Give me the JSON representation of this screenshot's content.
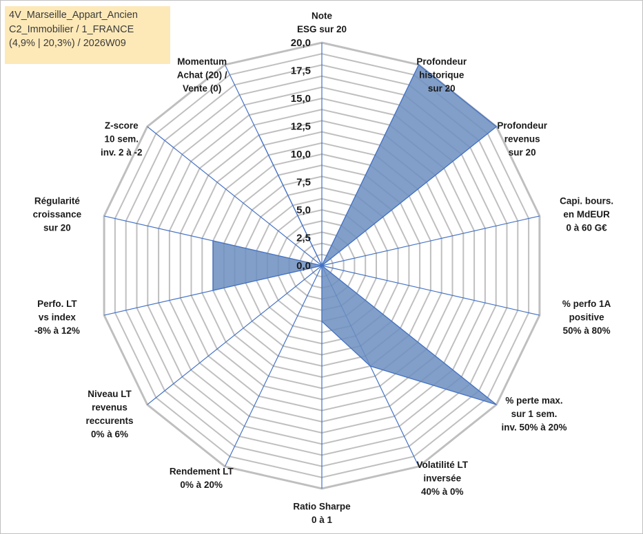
{
  "header": {
    "lines": [
      "4V_Marseille_Appart_Ancien",
      "C2_Immobilier / 1_FRANCE",
      "(4,9% | 20,3%) / 2026W09"
    ]
  },
  "chart_data": {
    "type": "radar",
    "title": "",
    "rmin": 0,
    "rmax": 20,
    "ticks": [
      "0,0",
      "2,5",
      "5,0",
      "7,5",
      "10,0",
      "12,5",
      "15,0",
      "17,5",
      "20,0"
    ],
    "tick_values": [
      0,
      2.5,
      5,
      7.5,
      10,
      12.5,
      15,
      17.5,
      20
    ],
    "grid": true,
    "legend": "none",
    "fill_color": "#6c8ebf",
    "line_color": "#4472c4",
    "grid_color": "#bfbfbf",
    "axes": [
      {
        "label": [
          "Note",
          "ESG sur 20"
        ],
        "value": 0
      },
      {
        "label": [
          "Profondeur",
          "historique",
          "sur 20"
        ],
        "value": 20
      },
      {
        "label": [
          "Profondeur",
          "revenus",
          "sur 20"
        ],
        "value": 20
      },
      {
        "label": [
          "Capi. bours.",
          "en MdEUR",
          "0 à 60 G€"
        ],
        "value": 0
      },
      {
        "label": [
          "% perfo 1A",
          "positive",
          "50% à 80%"
        ],
        "value": 0
      },
      {
        "label": [
          "% perte max.",
          "sur 1 sem.",
          "inv. 50% à 20%"
        ],
        "value": 20
      },
      {
        "label": [
          "Volatilité LT",
          "inversée",
          "40% à 0%"
        ],
        "value": 10
      },
      {
        "label": [
          "Ratio Sharpe",
          "0 à 1"
        ],
        "value": 5
      },
      {
        "label": [
          "Rendement LT",
          "0% à 20%"
        ],
        "value": 0
      },
      {
        "label": [
          "Niveau LT",
          "revenus",
          "reccurents",
          "0% à 6%"
        ],
        "value": 0
      },
      {
        "label": [
          "Perfo. LT",
          "vs index",
          "-8% à 12%"
        ],
        "value": 10
      },
      {
        "label": [
          "Régularité",
          "croissance",
          "sur 20"
        ],
        "value": 10
      },
      {
        "label": [
          "Z-score",
          "10 sem.",
          "inv. 2 à -2"
        ],
        "value": 0
      },
      {
        "label": [
          "Momentum",
          "Achat (20) /",
          "Vente (0)"
        ],
        "value": 13
      }
    ]
  }
}
